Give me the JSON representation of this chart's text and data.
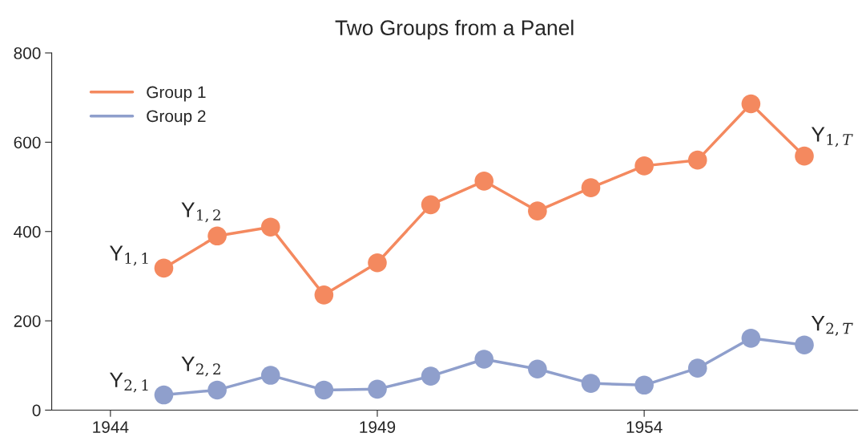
{
  "chart_data": {
    "type": "line",
    "title": "Two Groups from a Panel",
    "x": [
      1945,
      1946,
      1947,
      1948,
      1949,
      1950,
      1951,
      1952,
      1953,
      1954,
      1955,
      1956,
      1957
    ],
    "series": [
      {
        "name": "Group 1",
        "color": "#f4895f",
        "values": [
          318,
          390,
          410,
          258,
          330,
          460,
          513,
          446,
          498,
          547,
          560,
          686,
          569
        ]
      },
      {
        "name": "Group 2",
        "color": "#8f9fcc",
        "values": [
          34,
          45,
          78,
          45,
          47,
          76,
          114,
          92,
          60,
          56,
          94,
          161,
          146
        ]
      }
    ],
    "xlim": [
      1942.9,
      1958
    ],
    "xticks": [
      1944,
      1949,
      1954
    ],
    "ylim": [
      0,
      800
    ],
    "yticks": [
      0,
      200,
      400,
      600,
      800
    ],
    "marker": "circle",
    "line_style": "solid",
    "grid": false,
    "legend": "top left",
    "annotations": [
      {
        "text": "Y$_{1,1}$",
        "x": 1945,
        "y": 318
      },
      {
        "text": "Y$_{1,2}$",
        "x": 1946,
        "y": 390
      },
      {
        "text": "Y$_{1,T}$",
        "x": 1957,
        "y": 569
      },
      {
        "text": "Y$_{2,1}$",
        "x": 1945,
        "y": 34
      },
      {
        "text": "Y$_{2,2}$",
        "x": 1946,
        "y": 45
      },
      {
        "text": "Y$_{2,T}$",
        "x": 1957,
        "y": 146
      }
    ]
  }
}
